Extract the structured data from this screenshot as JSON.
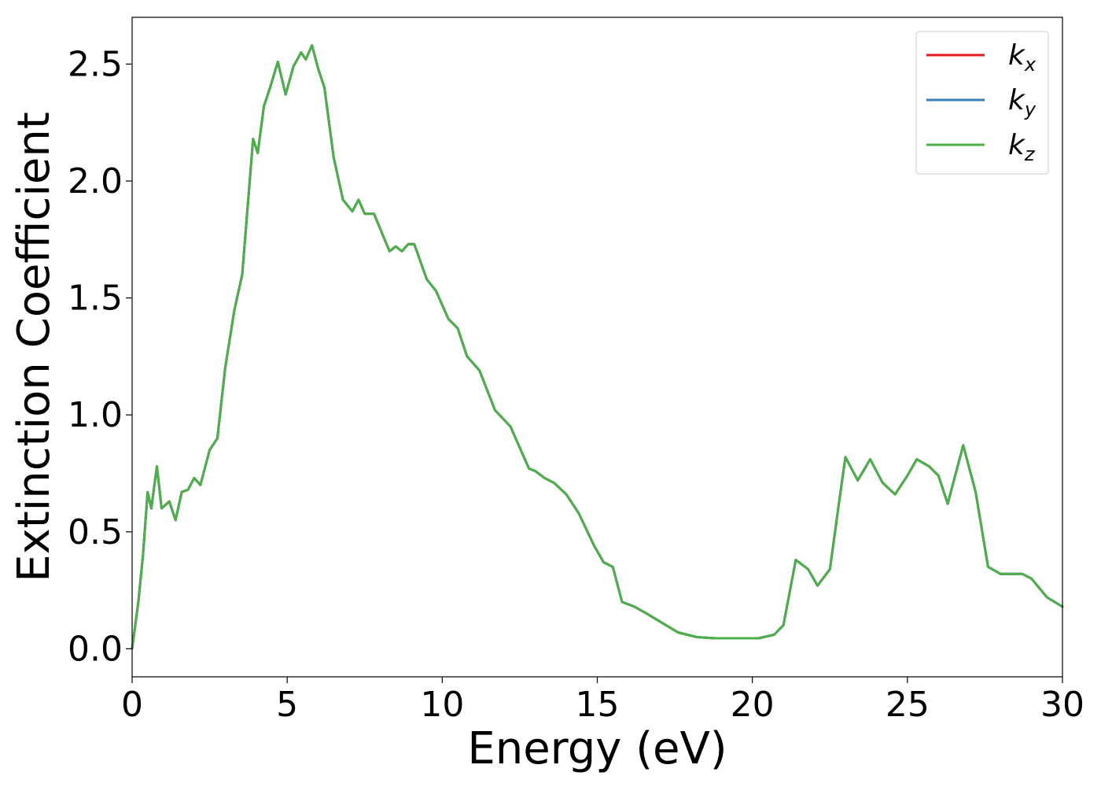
{
  "chart_data": {
    "type": "line",
    "xlabel": "Energy (eV)",
    "ylabel": "Extinction Coefficient",
    "xlim": [
      0,
      30
    ],
    "ylim": [
      -0.12,
      2.7
    ],
    "xticks": [
      0,
      5,
      10,
      15,
      20,
      25,
      30
    ],
    "yticks": [
      0.0,
      0.5,
      1.0,
      1.5,
      2.0,
      2.5
    ],
    "xtick_labels": [
      "0",
      "5",
      "10",
      "15",
      "20",
      "25",
      "30"
    ],
    "ytick_labels": [
      "0.0",
      "0.5",
      "1.0",
      "1.5",
      "2.0",
      "2.5"
    ],
    "grid": false,
    "legend_position": "top-right",
    "x": [
      0,
      0.2,
      0.35,
      0.5,
      0.62,
      0.8,
      0.95,
      1.2,
      1.4,
      1.6,
      1.8,
      2.0,
      2.2,
      2.5,
      2.75,
      3.0,
      3.3,
      3.55,
      3.9,
      4.05,
      4.25,
      4.45,
      4.7,
      4.95,
      5.2,
      5.45,
      5.6,
      5.8,
      6.0,
      6.2,
      6.5,
      6.8,
      7.1,
      7.3,
      7.5,
      7.8,
      8.05,
      8.3,
      8.5,
      8.7,
      8.9,
      9.1,
      9.5,
      9.8,
      10.2,
      10.5,
      10.8,
      11.2,
      11.7,
      12.2,
      12.8,
      13.0,
      13.3,
      13.6,
      14.0,
      14.4,
      14.9,
      15.2,
      15.5,
      15.8,
      16.2,
      16.6,
      17.1,
      17.6,
      18.2,
      18.8,
      19.5,
      20.2,
      20.7,
      21.0,
      21.4,
      21.8,
      22.1,
      22.5,
      22.8,
      23.0,
      23.4,
      23.8,
      24.2,
      24.6,
      25.0,
      25.3,
      25.7,
      26.0,
      26.3,
      26.6,
      26.8,
      27.2,
      27.6,
      28.0,
      28.3,
      28.7,
      29.0,
      29.5,
      30.0
    ],
    "series": [
      {
        "name": "k_x",
        "color": "#e41a1c",
        "y": [
          0.0,
          0.2,
          0.4,
          0.67,
          0.6,
          0.78,
          0.6,
          0.63,
          0.55,
          0.67,
          0.68,
          0.73,
          0.7,
          0.85,
          0.9,
          1.2,
          1.45,
          1.6,
          2.18,
          2.12,
          2.32,
          2.4,
          2.51,
          2.37,
          2.49,
          2.55,
          2.52,
          2.58,
          2.48,
          2.4,
          2.1,
          1.92,
          1.87,
          1.92,
          1.86,
          1.86,
          1.78,
          1.7,
          1.72,
          1.7,
          1.73,
          1.73,
          1.58,
          1.53,
          1.41,
          1.37,
          1.25,
          1.19,
          1.02,
          0.95,
          0.77,
          0.76,
          0.73,
          0.71,
          0.66,
          0.58,
          0.44,
          0.37,
          0.35,
          0.2,
          0.18,
          0.15,
          0.11,
          0.07,
          0.05,
          0.045,
          0.045,
          0.045,
          0.06,
          0.1,
          0.38,
          0.34,
          0.27,
          0.34,
          0.63,
          0.82,
          0.72,
          0.81,
          0.71,
          0.66,
          0.74,
          0.81,
          0.78,
          0.74,
          0.62,
          0.77,
          0.87,
          0.67,
          0.35,
          0.32,
          0.32,
          0.32,
          0.3,
          0.22,
          0.18
        ]
      },
      {
        "name": "k_y",
        "color": "#377eb8",
        "y": [
          0.0,
          0.2,
          0.4,
          0.67,
          0.6,
          0.78,
          0.6,
          0.63,
          0.55,
          0.67,
          0.68,
          0.73,
          0.7,
          0.85,
          0.9,
          1.2,
          1.45,
          1.6,
          2.18,
          2.12,
          2.32,
          2.4,
          2.51,
          2.37,
          2.49,
          2.55,
          2.52,
          2.58,
          2.48,
          2.4,
          2.1,
          1.92,
          1.87,
          1.92,
          1.86,
          1.86,
          1.78,
          1.7,
          1.72,
          1.7,
          1.73,
          1.73,
          1.58,
          1.53,
          1.41,
          1.37,
          1.25,
          1.19,
          1.02,
          0.95,
          0.77,
          0.76,
          0.73,
          0.71,
          0.66,
          0.58,
          0.44,
          0.37,
          0.35,
          0.2,
          0.18,
          0.15,
          0.11,
          0.07,
          0.05,
          0.045,
          0.045,
          0.045,
          0.06,
          0.1,
          0.38,
          0.34,
          0.27,
          0.34,
          0.63,
          0.82,
          0.72,
          0.81,
          0.71,
          0.66,
          0.74,
          0.81,
          0.78,
          0.74,
          0.62,
          0.77,
          0.87,
          0.67,
          0.35,
          0.32,
          0.32,
          0.32,
          0.3,
          0.22,
          0.18
        ]
      },
      {
        "name": "k_z",
        "color": "#4daf4a",
        "y": [
          0.0,
          0.2,
          0.4,
          0.67,
          0.6,
          0.78,
          0.6,
          0.63,
          0.55,
          0.67,
          0.68,
          0.73,
          0.7,
          0.85,
          0.9,
          1.2,
          1.45,
          1.6,
          2.18,
          2.12,
          2.32,
          2.4,
          2.51,
          2.37,
          2.49,
          2.55,
          2.52,
          2.58,
          2.48,
          2.4,
          2.1,
          1.92,
          1.87,
          1.92,
          1.86,
          1.86,
          1.78,
          1.7,
          1.72,
          1.7,
          1.73,
          1.73,
          1.58,
          1.53,
          1.41,
          1.37,
          1.25,
          1.19,
          1.02,
          0.95,
          0.77,
          0.76,
          0.73,
          0.71,
          0.66,
          0.58,
          0.44,
          0.37,
          0.35,
          0.2,
          0.18,
          0.15,
          0.11,
          0.07,
          0.05,
          0.045,
          0.045,
          0.045,
          0.06,
          0.1,
          0.38,
          0.34,
          0.27,
          0.34,
          0.63,
          0.82,
          0.72,
          0.81,
          0.71,
          0.66,
          0.74,
          0.81,
          0.78,
          0.74,
          0.62,
          0.77,
          0.87,
          0.67,
          0.35,
          0.32,
          0.32,
          0.32,
          0.3,
          0.22,
          0.18
        ]
      }
    ],
    "legend": [
      {
        "base": "k",
        "sub": "x",
        "color": "#e41a1c"
      },
      {
        "base": "k",
        "sub": "y",
        "color": "#377eb8"
      },
      {
        "base": "k",
        "sub": "z",
        "color": "#4daf4a"
      }
    ]
  }
}
